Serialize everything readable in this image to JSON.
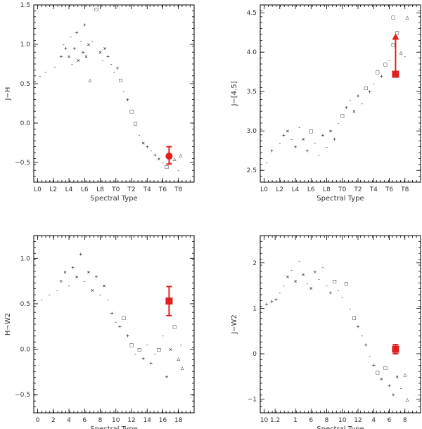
{
  "chart_data": [
    {
      "type": "scatter",
      "panel": "top-left",
      "xlabel": "Spectral Type",
      "ylabel": "J−H",
      "xlim": [
        -0.5,
        20
      ],
      "ylim": [
        -0.75,
        1.5
      ],
      "x_tick_labels": [
        {
          "v": 0,
          "t": "L0"
        },
        {
          "v": 2,
          "t": "L2"
        },
        {
          "v": 4,
          "t": "L4"
        },
        {
          "v": 6,
          "t": "L6"
        },
        {
          "v": 8,
          "t": "L8"
        },
        {
          "v": 10,
          "t": "T0"
        },
        {
          "v": 12,
          "t": "T2"
        },
        {
          "v": 14,
          "t": "T4"
        },
        {
          "v": 16,
          "t": "T6"
        },
        {
          "v": 18,
          "t": "T8"
        }
      ],
      "y_tick_labels": [
        {
          "v": 1.5,
          "t": "1.5"
        },
        {
          "v": 1.0,
          "t": "1.0"
        },
        {
          "v": 0.5,
          "t": "0.5"
        },
        {
          "v": 0.0,
          "t": "0.0"
        },
        {
          "v": -0.5,
          "t": "−0.5"
        }
      ],
      "points": [
        {
          "x": 0.3,
          "y": 0.6,
          "m": "-"
        },
        {
          "x": 1.0,
          "y": 0.65,
          "m": "-"
        },
        {
          "x": 2.2,
          "y": 0.72,
          "m": "-"
        },
        {
          "x": 3.0,
          "y": 0.85,
          "m": "+"
        },
        {
          "x": 3.3,
          "y": 1.0,
          "m": "-"
        },
        {
          "x": 3.6,
          "y": 0.95,
          "m": "+"
        },
        {
          "x": 4.0,
          "y": 0.85,
          "m": "×"
        },
        {
          "x": 4.2,
          "y": 1.1,
          "m": "-"
        },
        {
          "x": 4.4,
          "y": 0.75,
          "m": "-"
        },
        {
          "x": 4.7,
          "y": 0.95,
          "m": "+"
        },
        {
          "x": 5.0,
          "y": 1.15,
          "m": "+"
        },
        {
          "x": 5.2,
          "y": 0.8,
          "m": "×"
        },
        {
          "x": 5.5,
          "y": 1.05,
          "m": "-"
        },
        {
          "x": 5.8,
          "y": 0.9,
          "m": "+"
        },
        {
          "x": 6.0,
          "y": 1.25,
          "m": "+"
        },
        {
          "x": 6.2,
          "y": 0.85,
          "m": "×"
        },
        {
          "x": 6.5,
          "y": 1.0,
          "m": "×"
        },
        {
          "x": 6.7,
          "y": 0.55,
          "m": "△"
        },
        {
          "x": 7.0,
          "y": 1.05,
          "m": "-"
        },
        {
          "x": 7.5,
          "y": 1.45,
          "m": "□"
        },
        {
          "x": 8.0,
          "y": 0.9,
          "m": "×"
        },
        {
          "x": 8.3,
          "y": 0.8,
          "m": "-"
        },
        {
          "x": 8.6,
          "y": 0.95,
          "m": "×"
        },
        {
          "x": 9.0,
          "y": 0.85,
          "m": "+"
        },
        {
          "x": 9.4,
          "y": 0.75,
          "m": "-"
        },
        {
          "x": 9.8,
          "y": 0.65,
          "m": "-"
        },
        {
          "x": 10.2,
          "y": 0.7,
          "m": "+"
        },
        {
          "x": 10.6,
          "y": 0.55,
          "m": "□"
        },
        {
          "x": 11.0,
          "y": 0.4,
          "m": "-"
        },
        {
          "x": 11.5,
          "y": 0.3,
          "m": "+"
        },
        {
          "x": 12.0,
          "y": 0.15,
          "m": "□"
        },
        {
          "x": 12.5,
          "y": 0.0,
          "m": "□"
        },
        {
          "x": 13.0,
          "y": -0.15,
          "m": "-"
        },
        {
          "x": 13.5,
          "y": -0.25,
          "m": "×"
        },
        {
          "x": 14.0,
          "y": -0.3,
          "m": "+"
        },
        {
          "x": 14.5,
          "y": -0.35,
          "m": "-"
        },
        {
          "x": 15.0,
          "y": -0.4,
          "m": "+"
        },
        {
          "x": 15.5,
          "y": -0.45,
          "m": "×"
        },
        {
          "x": 16.0,
          "y": -0.5,
          "m": "-"
        },
        {
          "x": 16.5,
          "y": -0.55,
          "m": "□"
        },
        {
          "x": 17.0,
          "y": -0.5,
          "m": "-"
        },
        {
          "x": 17.5,
          "y": -0.45,
          "m": "△"
        },
        {
          "x": 18.0,
          "y": -0.6,
          "m": "-"
        },
        {
          "x": 18.3,
          "y": -0.4,
          "m": "△"
        }
      ],
      "highlight": {
        "x": 16.8,
        "y": -0.42,
        "err_low": -0.52,
        "err_high": -0.3,
        "color": "#e0201e",
        "shape": "circle"
      }
    },
    {
      "type": "scatter",
      "panel": "top-right",
      "xlabel": "Spectral Type",
      "ylabel": "J−[4.5]",
      "xlim": [
        -0.5,
        20
      ],
      "ylim": [
        2.35,
        4.6
      ],
      "x_tick_labels": [
        {
          "v": 0,
          "t": "L0"
        },
        {
          "v": 2,
          "t": "L2"
        },
        {
          "v": 4,
          "t": "L4"
        },
        {
          "v": 6,
          "t": "L6"
        },
        {
          "v": 8,
          "t": "L8"
        },
        {
          "v": 10,
          "t": "T0"
        },
        {
          "v": 12,
          "t": "T2"
        },
        {
          "v": 14,
          "t": "T4"
        },
        {
          "v": 16,
          "t": "T6"
        },
        {
          "v": 18,
          "t": "T8"
        }
      ],
      "y_tick_labels": [
        {
          "v": 4.5,
          "t": "4.5"
        },
        {
          "v": 4.0,
          "t": "4.0"
        },
        {
          "v": 3.5,
          "t": "3.5"
        },
        {
          "v": 3.0,
          "t": "3.0"
        },
        {
          "v": 2.5,
          "t": "2.5"
        }
      ],
      "points": [
        {
          "x": 0.3,
          "y": 2.6,
          "m": "-"
        },
        {
          "x": 1.0,
          "y": 2.75,
          "m": "+"
        },
        {
          "x": 2.0,
          "y": 2.85,
          "m": "-"
        },
        {
          "x": 2.5,
          "y": 2.95,
          "m": "+"
        },
        {
          "x": 3.0,
          "y": 3.0,
          "m": "×"
        },
        {
          "x": 3.5,
          "y": 2.9,
          "m": "-"
        },
        {
          "x": 4.0,
          "y": 2.8,
          "m": "+"
        },
        {
          "x": 4.5,
          "y": 3.05,
          "m": "-"
        },
        {
          "x": 5.0,
          "y": 2.9,
          "m": "×"
        },
        {
          "x": 5.5,
          "y": 2.75,
          "m": "+"
        },
        {
          "x": 6.0,
          "y": 3.0,
          "m": "□"
        },
        {
          "x": 6.5,
          "y": 2.85,
          "m": "-"
        },
        {
          "x": 7.0,
          "y": 2.7,
          "m": "-"
        },
        {
          "x": 7.5,
          "y": 2.95,
          "m": "+"
        },
        {
          "x": 8.0,
          "y": 2.8,
          "m": "-"
        },
        {
          "x": 8.5,
          "y": 3.0,
          "m": "×"
        },
        {
          "x": 9.0,
          "y": 2.9,
          "m": "+"
        },
        {
          "x": 9.5,
          "y": 3.1,
          "m": "-"
        },
        {
          "x": 10.0,
          "y": 3.2,
          "m": "□"
        },
        {
          "x": 10.5,
          "y": 3.3,
          "m": "+"
        },
        {
          "x": 11.0,
          "y": 3.4,
          "m": "-"
        },
        {
          "x": 11.5,
          "y": 3.25,
          "m": "×"
        },
        {
          "x": 12.0,
          "y": 3.45,
          "m": "+"
        },
        {
          "x": 12.5,
          "y": 3.35,
          "m": "-"
        },
        {
          "x": 13.0,
          "y": 3.55,
          "m": "□"
        },
        {
          "x": 13.5,
          "y": 3.5,
          "m": "+"
        },
        {
          "x": 14.0,
          "y": 3.6,
          "m": "-"
        },
        {
          "x": 14.5,
          "y": 3.75,
          "m": "□"
        },
        {
          "x": 15.0,
          "y": 3.7,
          "m": "+"
        },
        {
          "x": 15.5,
          "y": 3.85,
          "m": "□"
        },
        {
          "x": 16.0,
          "y": 3.9,
          "m": "-"
        },
        {
          "x": 16.5,
          "y": 4.1,
          "m": "□"
        },
        {
          "x": 17.0,
          "y": 4.25,
          "m": "□"
        },
        {
          "x": 17.5,
          "y": 4.0,
          "m": "△"
        },
        {
          "x": 18.0,
          "y": 3.95,
          "m": "-"
        },
        {
          "x": 18.3,
          "y": 4.45,
          "m": "△"
        },
        {
          "x": 16.5,
          "y": 4.45,
          "m": "□"
        }
      ],
      "highlight": {
        "x": 16.8,
        "y": 3.72,
        "arrow_to": 4.22,
        "color": "#e0201e",
        "shape": "square"
      }
    },
    {
      "type": "scatter",
      "panel": "bottom-left",
      "xlabel": "Spectral Type",
      "ylabel": "H−W2",
      "xlim": [
        -0.5,
        20
      ],
      "ylim": [
        -0.7,
        1.25
      ],
      "x_tick_labels": [
        {
          "v": 0,
          "t": "0"
        },
        {
          "v": 2,
          "t": "2"
        },
        {
          "v": 4,
          "t": "4"
        },
        {
          "v": 6,
          "t": "6"
        },
        {
          "v": 8,
          "t": "8"
        },
        {
          "v": 10,
          "t": "10"
        },
        {
          "v": 12,
          "t": "12"
        },
        {
          "v": 14,
          "t": "14"
        },
        {
          "v": 16,
          "t": "16"
        },
        {
          "v": 18,
          "t": "18"
        }
      ],
      "y_tick_labels": [
        {
          "v": 1.0,
          "t": "1.0"
        },
        {
          "v": 0.5,
          "t": "0.5"
        },
        {
          "v": 0.0,
          "t": "0.0"
        },
        {
          "v": -0.5,
          "t": "−0.5"
        }
      ],
      "points": [
        {
          "x": 0.5,
          "y": 0.55,
          "m": "-"
        },
        {
          "x": 1.5,
          "y": 0.6,
          "m": "-"
        },
        {
          "x": 2.5,
          "y": 0.65,
          "m": "-"
        },
        {
          "x": 3.0,
          "y": 0.75,
          "m": "+"
        },
        {
          "x": 3.5,
          "y": 0.85,
          "m": "×"
        },
        {
          "x": 4.0,
          "y": 0.7,
          "m": "-"
        },
        {
          "x": 4.5,
          "y": 0.9,
          "m": "+"
        },
        {
          "x": 5.0,
          "y": 0.8,
          "m": "×"
        },
        {
          "x": 5.5,
          "y": 1.05,
          "m": "+"
        },
        {
          "x": 6.0,
          "y": 0.75,
          "m": "-"
        },
        {
          "x": 6.5,
          "y": 0.85,
          "m": "×"
        },
        {
          "x": 7.0,
          "y": 0.65,
          "m": "×"
        },
        {
          "x": 7.5,
          "y": 0.8,
          "m": "+"
        },
        {
          "x": 8.0,
          "y": 0.6,
          "m": "-"
        },
        {
          "x": 8.5,
          "y": 0.7,
          "m": "×"
        },
        {
          "x": 9.0,
          "y": 0.55,
          "m": "-"
        },
        {
          "x": 9.5,
          "y": 0.4,
          "m": "+"
        },
        {
          "x": 10.0,
          "y": 0.3,
          "m": "-"
        },
        {
          "x": 10.5,
          "y": 0.25,
          "m": "+"
        },
        {
          "x": 11.0,
          "y": 0.35,
          "m": "□"
        },
        {
          "x": 11.5,
          "y": 0.15,
          "m": "+"
        },
        {
          "x": 12.0,
          "y": 0.05,
          "m": "□"
        },
        {
          "x": 12.5,
          "y": -0.05,
          "m": "-"
        },
        {
          "x": 13.0,
          "y": 0.0,
          "m": "□"
        },
        {
          "x": 13.5,
          "y": -0.1,
          "m": "+"
        },
        {
          "x": 14.0,
          "y": 0.05,
          "m": "-"
        },
        {
          "x": 14.5,
          "y": -0.15,
          "m": "+"
        },
        {
          "x": 15.0,
          "y": -0.05,
          "m": "-"
        },
        {
          "x": 15.5,
          "y": 0.0,
          "m": "□"
        },
        {
          "x": 16.0,
          "y": 0.15,
          "m": "-"
        },
        {
          "x": 16.5,
          "y": -0.3,
          "m": "+"
        },
        {
          "x": 17.0,
          "y": 0.0,
          "m": "×"
        },
        {
          "x": 17.5,
          "y": 0.25,
          "m": "□"
        },
        {
          "x": 18.0,
          "y": -0.1,
          "m": "△"
        },
        {
          "x": 18.3,
          "y": 0.05,
          "m": "-"
        },
        {
          "x": 18.5,
          "y": -0.2,
          "m": "△"
        }
      ],
      "highlight": {
        "x": 16.8,
        "y": 0.53,
        "err_low": 0.37,
        "err_high": 0.69,
        "color": "#e0201e",
        "shape": "square"
      }
    },
    {
      "type": "scatter",
      "panel": "bottom-right",
      "xlabel": "Spectral Type",
      "ylabel": "J−W2",
      "xlim": [
        -0.5,
        20
      ],
      "ylim": [
        -1.3,
        2.6
      ],
      "x_tick_labels": [
        {
          "v": 0,
          "t": "10"
        },
        {
          "v": 1.4,
          "t": "1.2"
        },
        {
          "v": 4,
          "t": "1"
        },
        {
          "v": 6,
          "t": "6"
        },
        {
          "v": 8,
          "t": "8"
        },
        {
          "v": 10,
          "t": "10"
        },
        {
          "v": 12,
          "t": "12"
        },
        {
          "v": 14,
          "t": "4"
        },
        {
          "v": 16,
          "t": "6"
        },
        {
          "v": 18,
          "t": "8"
        }
      ],
      "y_tick_labels": [
        {
          "v": 2,
          "t": "2"
        },
        {
          "v": 1,
          "t": "1"
        },
        {
          "v": 0,
          "t": "0"
        },
        {
          "v": -1,
          "t": "−1"
        }
      ],
      "points": [
        {
          "x": 0.3,
          "y": 1.1,
          "m": "+"
        },
        {
          "x": 1.0,
          "y": 1.15,
          "m": "+"
        },
        {
          "x": 1.5,
          "y": 1.2,
          "m": "+"
        },
        {
          "x": 2.0,
          "y": 1.35,
          "m": "-"
        },
        {
          "x": 2.5,
          "y": 1.5,
          "m": "-"
        },
        {
          "x": 3.0,
          "y": 1.7,
          "m": "×"
        },
        {
          "x": 3.5,
          "y": 1.85,
          "m": "-"
        },
        {
          "x": 4.0,
          "y": 1.6,
          "m": "×"
        },
        {
          "x": 4.5,
          "y": 2.05,
          "m": "-"
        },
        {
          "x": 5.0,
          "y": 1.75,
          "m": "×"
        },
        {
          "x": 5.5,
          "y": 1.55,
          "m": "-"
        },
        {
          "x": 6.0,
          "y": 1.45,
          "m": "×"
        },
        {
          "x": 6.5,
          "y": 1.8,
          "m": "+"
        },
        {
          "x": 7.0,
          "y": 1.65,
          "m": "-"
        },
        {
          "x": 7.5,
          "y": 1.9,
          "m": "-"
        },
        {
          "x": 8.0,
          "y": 1.5,
          "m": "-"
        },
        {
          "x": 8.5,
          "y": 1.35,
          "m": "+"
        },
        {
          "x": 9.0,
          "y": 1.6,
          "m": "□"
        },
        {
          "x": 9.5,
          "y": 1.4,
          "m": "-"
        },
        {
          "x": 10.0,
          "y": 1.25,
          "m": "-"
        },
        {
          "x": 10.5,
          "y": 1.55,
          "m": "□"
        },
        {
          "x": 11.0,
          "y": 1.0,
          "m": "-"
        },
        {
          "x": 11.5,
          "y": 0.8,
          "m": "□"
        },
        {
          "x": 12.0,
          "y": 0.6,
          "m": "+"
        },
        {
          "x": 12.5,
          "y": 0.4,
          "m": "-"
        },
        {
          "x": 13.0,
          "y": 0.2,
          "m": "+"
        },
        {
          "x": 13.5,
          "y": -0.05,
          "m": "-"
        },
        {
          "x": 14.0,
          "y": -0.25,
          "m": "+"
        },
        {
          "x": 14.5,
          "y": -0.4,
          "m": "□"
        },
        {
          "x": 15.0,
          "y": -0.55,
          "m": "×"
        },
        {
          "x": 15.5,
          "y": -0.3,
          "m": "□"
        },
        {
          "x": 16.0,
          "y": -0.7,
          "m": "+"
        },
        {
          "x": 16.5,
          "y": -0.9,
          "m": "+"
        },
        {
          "x": 17.0,
          "y": -0.5,
          "m": "×"
        },
        {
          "x": 17.5,
          "y": -0.75,
          "m": "-"
        },
        {
          "x": 18.0,
          "y": -0.45,
          "m": "△"
        },
        {
          "x": 18.3,
          "y": -1.0,
          "m": "△"
        }
      ],
      "highlight": {
        "x": 16.8,
        "y": 0.1,
        "err_low": 0.0,
        "err_high": 0.2,
        "color": "#e0201e",
        "shape": "square"
      }
    }
  ]
}
